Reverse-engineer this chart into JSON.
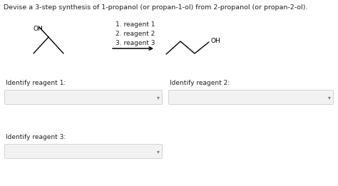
{
  "title": "Devise a 3-step synthesis of 1-propanol (or propan-1-ol) from 2-propanol (or propan-2-ol).",
  "title_fontsize": 6.8,
  "bg_color": "#ffffff",
  "reagents_text": "1. reagent 1\n2. reagent 2\n3. reagent 3",
  "label_identify1": "Identify reagent 1:",
  "label_identify2": "Identify reagent 2:",
  "label_identify3": "Identify reagent 3:",
  "label_fontsize": 6.5,
  "reagents_fontsize": 6.5,
  "box_color": "#f2f2f2",
  "box_edge_color": "#cccccc",
  "mol_line_color": "#000000",
  "mol_lw": 1.0,
  "text_color": "#222222"
}
